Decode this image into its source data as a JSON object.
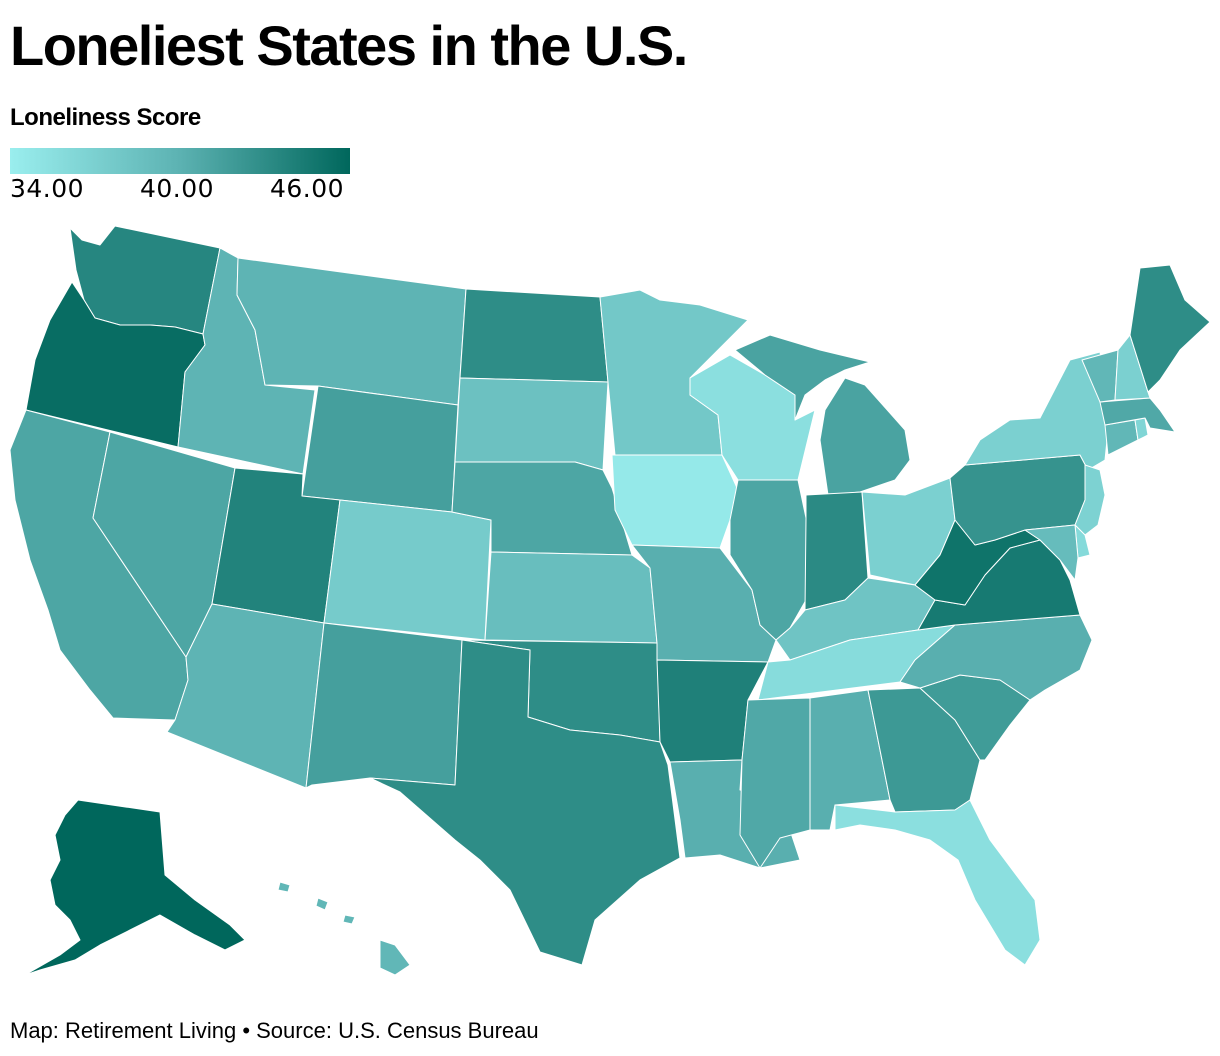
{
  "title": "Loneliest States in the U.S.",
  "legend": {
    "title": "Loneliness Score",
    "ticks": [
      "34.00",
      "40.00",
      "46.00"
    ],
    "min": 34,
    "max": 46,
    "colors": [
      "#9aeeee",
      "#5cb2b2",
      "#00675c"
    ]
  },
  "footer": "Map: Retirement Living • Source: U.S. Census Bureau",
  "map_data": {
    "type": "choropleth",
    "states": [
      {
        "name": "Washington",
        "score": 43.5
      },
      {
        "name": "Oregon",
        "score": 45.5
      },
      {
        "name": "California",
        "score": 41.0
      },
      {
        "name": "Idaho",
        "score": 39.8
      },
      {
        "name": "Nevada",
        "score": 41.0
      },
      {
        "name": "Montana",
        "score": 39.8
      },
      {
        "name": "Wyoming",
        "score": 41.5
      },
      {
        "name": "Utah",
        "score": 43.8
      },
      {
        "name": "Arizona",
        "score": 39.8
      },
      {
        "name": "Colorado",
        "score": 37.5
      },
      {
        "name": "New Mexico",
        "score": 41.5
      },
      {
        "name": "North Dakota",
        "score": 43.0
      },
      {
        "name": "South Dakota",
        "score": 38.5
      },
      {
        "name": "Nebraska",
        "score": 41.0
      },
      {
        "name": "Kansas",
        "score": 38.8
      },
      {
        "name": "Oklahoma",
        "score": 43.0
      },
      {
        "name": "Texas",
        "score": 43.0
      },
      {
        "name": "Minnesota",
        "score": 37.8
      },
      {
        "name": "Iowa",
        "score": 34.5
      },
      {
        "name": "Missouri",
        "score": 40.2
      },
      {
        "name": "Arkansas",
        "score": 44.0
      },
      {
        "name": "Louisiana",
        "score": 40.2
      },
      {
        "name": "Wisconsin",
        "score": 35.5
      },
      {
        "name": "Illinois",
        "score": 41.0
      },
      {
        "name": "Michigan",
        "score": 41.2
      },
      {
        "name": "Indiana",
        "score": 43.2
      },
      {
        "name": "Ohio",
        "score": 37.0
      },
      {
        "name": "Kentucky",
        "score": 38.2
      },
      {
        "name": "Tennessee",
        "score": 35.8
      },
      {
        "name": "Mississippi",
        "score": 40.8
      },
      {
        "name": "Alabama",
        "score": 40.2
      },
      {
        "name": "Georgia",
        "score": 42.0
      },
      {
        "name": "Florida",
        "score": 35.5
      },
      {
        "name": "South Carolina",
        "score": 41.8
      },
      {
        "name": "North Carolina",
        "score": 40.2
      },
      {
        "name": "Virginia",
        "score": 44.5
      },
      {
        "name": "West Virginia",
        "score": 45.0
      },
      {
        "name": "Pennsylvania",
        "score": 42.5
      },
      {
        "name": "New York",
        "score": 37.0
      },
      {
        "name": "Vermont",
        "score": 39.5
      },
      {
        "name": "New Hampshire",
        "score": 37.0
      },
      {
        "name": "Maine",
        "score": 43.0
      },
      {
        "name": "Massachusetts",
        "score": 40.8
      },
      {
        "name": "Rhode Island",
        "score": 36.5
      },
      {
        "name": "Connecticut",
        "score": 39.5
      },
      {
        "name": "New Jersey",
        "score": 36.8
      },
      {
        "name": "Delaware",
        "score": 36.0
      },
      {
        "name": "Maryland",
        "score": 39.0
      },
      {
        "name": "Alaska",
        "score": 46.0
      },
      {
        "name": "Hawaii",
        "score": 39.5
      }
    ]
  }
}
